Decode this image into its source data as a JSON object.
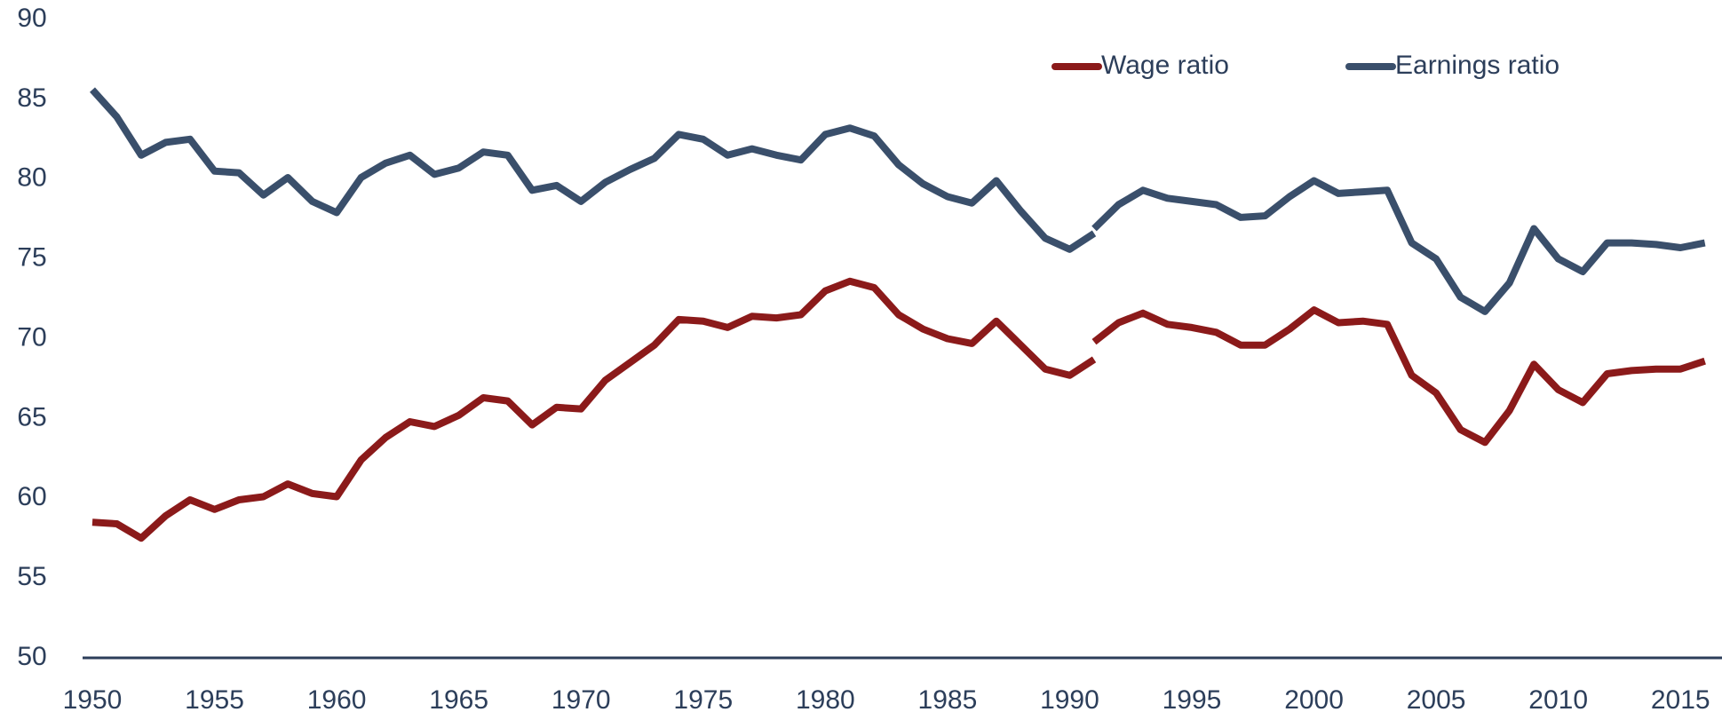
{
  "chart_data": {
    "type": "line",
    "x": [
      1950,
      1951,
      1952,
      1953,
      1954,
      1955,
      1956,
      1957,
      1958,
      1959,
      1960,
      1961,
      1962,
      1963,
      1964,
      1965,
      1966,
      1967,
      1968,
      1969,
      1970,
      1971,
      1972,
      1973,
      1974,
      1975,
      1976,
      1977,
      1978,
      1979,
      1980,
      1981,
      1982,
      1983,
      1984,
      1985,
      1986,
      1987,
      1988,
      1989,
      1990,
      1991,
      1991,
      1991,
      1992,
      1993,
      1994,
      1995,
      1996,
      1997,
      1998,
      1999,
      2000,
      2001,
      2002,
      2003,
      2004,
      2005,
      2006,
      2007,
      2008,
      2009,
      2010,
      2011,
      2012,
      2013,
      2014,
      2015,
      2016
    ],
    "series": [
      {
        "name": "Wage ratio",
        "color": "#8b1a1a",
        "values": [
          58.5,
          58.4,
          57.5,
          58.9,
          59.9,
          59.3,
          59.9,
          60.1,
          60.9,
          60.3,
          60.1,
          62.4,
          63.8,
          64.8,
          64.5,
          65.2,
          66.3,
          66.1,
          64.6,
          65.7,
          65.6,
          67.4,
          68.5,
          69.6,
          71.2,
          71.1,
          70.7,
          71.4,
          71.3,
          71.5,
          73.0,
          73.6,
          73.2,
          71.5,
          70.6,
          70.0,
          69.7,
          71.1,
          69.6,
          68.1,
          67.7,
          68.7,
          null,
          69.8,
          71.0,
          71.6,
          70.9,
          70.7,
          70.4,
          69.6,
          69.6,
          70.6,
          71.8,
          71.0,
          71.1,
          70.9,
          67.7,
          66.6,
          64.3,
          63.5,
          65.5,
          68.4,
          66.8,
          66.0,
          67.8,
          68.0,
          68.1,
          68.1,
          68.6
        ]
      },
      {
        "name": "Earnings ratio",
        "color": "#3a4f6b",
        "values": [
          85.6,
          83.9,
          81.5,
          82.3,
          82.5,
          80.5,
          80.4,
          79.0,
          80.1,
          78.6,
          77.9,
          80.1,
          81.0,
          81.5,
          80.3,
          80.7,
          81.7,
          81.5,
          79.3,
          79.6,
          78.6,
          79.8,
          80.6,
          81.3,
          82.8,
          82.5,
          81.5,
          81.9,
          81.5,
          81.2,
          82.8,
          83.2,
          82.7,
          80.9,
          79.7,
          78.9,
          78.5,
          79.9,
          78.0,
          76.3,
          75.6,
          76.6,
          null,
          76.9,
          78.4,
          79.3,
          78.8,
          78.6,
          78.4,
          77.6,
          77.7,
          78.9,
          79.9,
          79.1,
          79.2,
          79.3,
          76.0,
          75.0,
          72.6,
          71.7,
          73.5,
          76.9,
          75.0,
          74.2,
          76.0,
          76.0,
          75.9,
          75.7,
          76.0
        ]
      }
    ],
    "xlim": [
      1949.6,
      2016.7
    ],
    "xticks": [
      1950,
      1955,
      1960,
      1965,
      1970,
      1975,
      1980,
      1985,
      1990,
      1995,
      2000,
      2005,
      2010,
      2015
    ],
    "ylim": [
      50,
      90
    ],
    "yticks": [
      50,
      55,
      60,
      65,
      70,
      75,
      80,
      85,
      90
    ],
    "grid": false,
    "legend": "top-right"
  }
}
